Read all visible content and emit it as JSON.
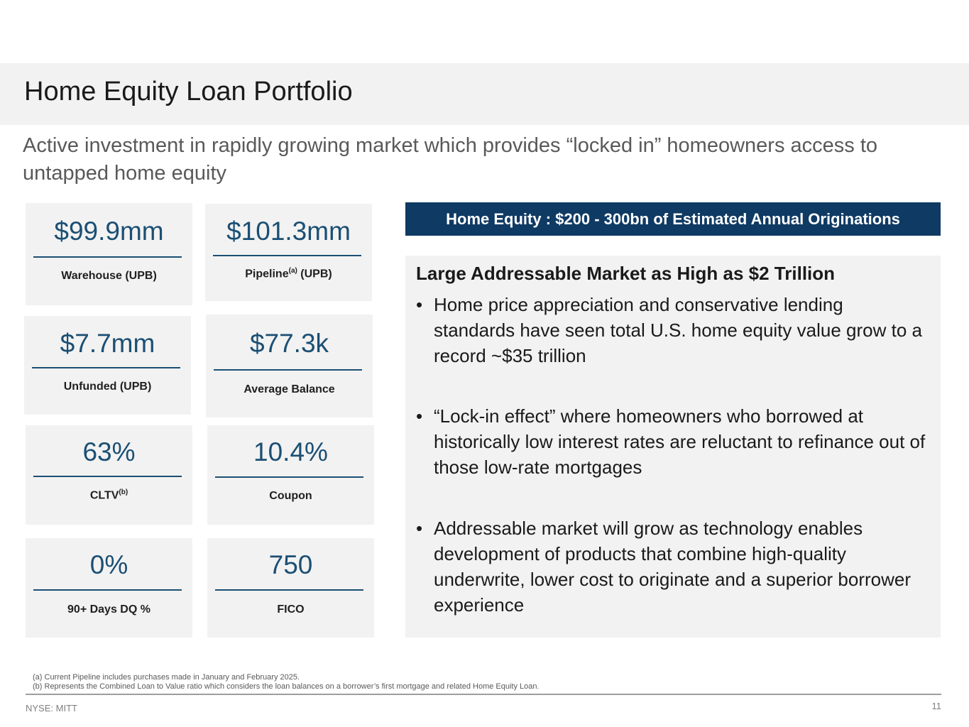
{
  "header": {
    "title": "Home Equity Loan Portfolio",
    "subtitle": "Active investment in rapidly growing market which provides “locked in” homeowners access to untapped home equity"
  },
  "metrics": [
    {
      "value": "$99.9mm",
      "label": "Warehouse (UPB)"
    },
    {
      "value": "$101.3mm",
      "label_main": "Pipeline",
      "label_sup": "(a)",
      "label_tail": " (UPB)"
    },
    {
      "value": "$7.7mm",
      "label": "Unfunded (UPB)"
    },
    {
      "value": "$77.3k",
      "label": "Average Balance"
    },
    {
      "value": "63%",
      "label_main": "CLTV",
      "label_sup": "(b)"
    },
    {
      "value": "10.4%",
      "label": "Coupon"
    },
    {
      "value": "0%",
      "label": "90+ Days DQ %"
    },
    {
      "value": "750",
      "label": "FICO"
    }
  ],
  "banner": {
    "text": "Home Equity : $200 - 300bn of Estimated Annual Originations"
  },
  "panel": {
    "heading": "Large Addressable Market as High as $2 Trillion",
    "bullet_symbol": "•",
    "bullets": [
      "Home price appreciation and conservative lending standards have seen total U.S. home equity value grow to a record ~$35 trillion",
      "“Lock-in effect” where homeowners who borrowed at historically low interest rates are reluctant to refinance out of those low-rate mortgages",
      "Addressable market will grow as technology enables development of products that combine high-quality underwrite, lower cost to originate and a superior borrower experience"
    ]
  },
  "footnotes": [
    "(a) Current Pipeline includes purchases made in January and February 2025.",
    "(b) Represents the Combined Loan to Value ratio which considers the loan balances on a borrower’s first mortgage and related Home Equity Loan."
  ],
  "footer": {
    "ticker": "NYSE: MITT",
    "page_number": "11"
  },
  "colors": {
    "accent": "#1b4f73",
    "banner": "#0f3a63",
    "panel_bg": "#f2f2f2"
  }
}
